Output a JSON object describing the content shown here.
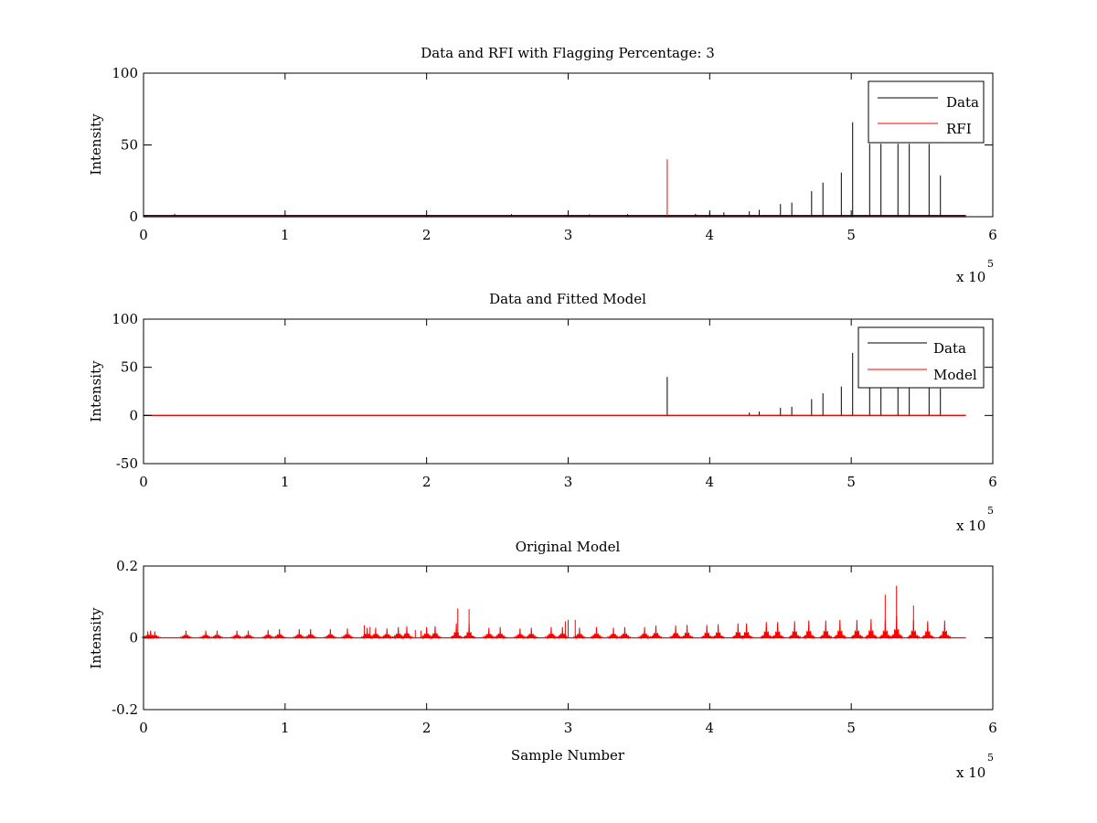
{
  "figure": {
    "background": "#ffffff"
  },
  "chart_data": [
    {
      "type": "line",
      "title": "Data and RFI with Flagging Percentage: 3",
      "xlabel": "",
      "ylabel": "Intensity",
      "xlim": [
        0,
        6
      ],
      "ylim": [
        0,
        100
      ],
      "xticks": [
        "0",
        "1",
        "2",
        "3",
        "4",
        "5",
        "6"
      ],
      "yticks": [
        "0",
        "50",
        "100"
      ],
      "x_multiplier": {
        "base": "x 10",
        "exponent": "5"
      },
      "legend": {
        "placement": "top-right",
        "entries": [
          "Data",
          "RFI"
        ]
      },
      "series": [
        {
          "name": "Data",
          "color": "#000000",
          "baseline": 0.8,
          "x_end": 5.81,
          "spikes": [
            [
              0.22,
              1.2
            ],
            [
              1.0,
              0.9
            ],
            [
              2.6,
              1.0
            ],
            [
              3.0,
              1.4
            ],
            [
              3.15,
              0.8
            ],
            [
              3.42,
              1.0
            ],
            [
              3.9,
              1.2
            ],
            [
              4.0,
              2.0
            ],
            [
              4.1,
              2.2
            ],
            [
              4.28,
              3.0
            ],
            [
              4.35,
              4.0
            ],
            [
              4.5,
              8.0
            ],
            [
              4.58,
              9.0
            ],
            [
              4.72,
              17.0
            ],
            [
              4.8,
              23.0
            ],
            [
              4.93,
              30.0
            ],
            [
              5.01,
              65.0
            ],
            [
              5.13,
              50.0
            ],
            [
              5.21,
              50.0
            ],
            [
              5.33,
              50.0
            ],
            [
              5.41,
              50.0
            ],
            [
              5.55,
              50.0
            ],
            [
              5.63,
              28.0
            ]
          ]
        },
        {
          "name": "RFI",
          "color": "#ff0000",
          "baseline": 0.0,
          "x_end": 5.81,
          "spikes": [
            [
              2.6,
              0.6
            ],
            [
              3.7,
              40.0
            ]
          ]
        }
      ]
    },
    {
      "type": "line",
      "title": "Data and Fitted Model",
      "xlabel": "",
      "ylabel": "Intensity",
      "xlim": [
        0,
        6
      ],
      "ylim": [
        -50,
        100
      ],
      "xticks": [
        "0",
        "1",
        "2",
        "3",
        "4",
        "5",
        "6"
      ],
      "yticks": [
        "-50",
        "0",
        "50",
        "100"
      ],
      "x_multiplier": {
        "base": "x 10",
        "exponent": "5"
      },
      "legend": {
        "placement": "top-right",
        "entries": [
          "Data",
          "Model"
        ]
      },
      "series": [
        {
          "name": "Data",
          "color": "#000000",
          "baseline": 0.0,
          "x_end": 5.81,
          "spikes": [
            [
              3.7,
              40.0
            ],
            [
              4.28,
              3.0
            ],
            [
              4.35,
              4.0
            ],
            [
              4.5,
              8.0
            ],
            [
              4.58,
              9.0
            ],
            [
              4.72,
              17.0
            ],
            [
              4.8,
              23.0
            ],
            [
              4.93,
              30.0
            ],
            [
              5.01,
              65.0
            ],
            [
              5.13,
              50.0
            ],
            [
              5.21,
              50.0
            ],
            [
              5.33,
              50.0
            ],
            [
              5.41,
              50.0
            ],
            [
              5.55,
              50.0
            ],
            [
              5.63,
              28.0
            ]
          ]
        },
        {
          "name": "Model",
          "color": "#ff0000",
          "baseline": 0.0,
          "x_end": 5.81,
          "spikes": []
        }
      ]
    },
    {
      "type": "line",
      "title": "Original Model",
      "xlabel": "Sample Number",
      "ylabel": "Intensity",
      "xlim": [
        0,
        6
      ],
      "ylim": [
        -0.2,
        0.2
      ],
      "xticks": [
        "0",
        "1",
        "2",
        "3",
        "4",
        "5",
        "6"
      ],
      "yticks": [
        "-0.2",
        "0",
        "0.2"
      ],
      "x_multiplier": {
        "base": "x 10",
        "exponent": "5"
      },
      "legend": null,
      "series": [
        {
          "name": "",
          "color": "#ff0000",
          "baseline": 0.0,
          "x_end": 5.81,
          "bumps": [
            [
              0.03,
              0.018
            ],
            [
              0.05,
              0.02
            ],
            [
              0.08,
              0.018
            ],
            [
              0.3,
              0.02
            ],
            [
              0.44,
              0.02
            ],
            [
              0.52,
              0.02
            ],
            [
              0.66,
              0.02
            ],
            [
              0.74,
              0.02
            ],
            [
              0.88,
              0.022
            ],
            [
              0.96,
              0.024
            ],
            [
              1.1,
              0.024
            ],
            [
              1.18,
              0.024
            ],
            [
              1.32,
              0.024
            ],
            [
              1.44,
              0.026
            ],
            [
              1.58,
              0.028
            ],
            [
              1.64,
              0.028
            ],
            [
              1.72,
              0.026
            ],
            [
              1.8,
              0.03
            ],
            [
              1.86,
              0.032
            ],
            [
              2.0,
              0.03
            ],
            [
              2.06,
              0.032
            ],
            [
              2.21,
              0.04
            ],
            [
              2.3,
              0.04
            ],
            [
              2.44,
              0.028
            ],
            [
              2.52,
              0.03
            ],
            [
              2.66,
              0.026
            ],
            [
              2.74,
              0.028
            ],
            [
              2.88,
              0.03
            ],
            [
              2.96,
              0.03
            ],
            [
              3.08,
              0.028
            ],
            [
              3.2,
              0.03
            ],
            [
              3.32,
              0.028
            ],
            [
              3.4,
              0.03
            ],
            [
              3.54,
              0.03
            ],
            [
              3.62,
              0.034
            ],
            [
              3.76,
              0.034
            ],
            [
              3.84,
              0.036
            ],
            [
              3.98,
              0.036
            ],
            [
              4.06,
              0.038
            ],
            [
              4.2,
              0.04
            ],
            [
              4.26,
              0.04
            ],
            [
              4.4,
              0.044
            ],
            [
              4.48,
              0.044
            ],
            [
              4.6,
              0.046
            ],
            [
              4.7,
              0.048
            ],
            [
              4.82,
              0.048
            ],
            [
              4.92,
              0.05
            ],
            [
              5.04,
              0.05
            ],
            [
              5.14,
              0.052
            ],
            [
              5.24,
              0.05
            ],
            [
              5.32,
              0.06
            ],
            [
              5.44,
              0.05
            ],
            [
              5.54,
              0.046
            ],
            [
              5.66,
              0.048
            ]
          ],
          "spikes": [
            [
              1.56,
              0.035
            ],
            [
              1.6,
              0.03
            ],
            [
              1.92,
              0.022
            ],
            [
              1.96,
              0.02
            ],
            [
              2.22,
              0.082
            ],
            [
              2.3,
              0.08
            ],
            [
              2.98,
              0.046
            ],
            [
              3.0,
              0.05
            ],
            [
              3.05,
              0.05
            ],
            [
              5.24,
              0.12
            ],
            [
              5.32,
              0.145
            ],
            [
              5.44,
              0.09
            ]
          ]
        }
      ]
    }
  ]
}
